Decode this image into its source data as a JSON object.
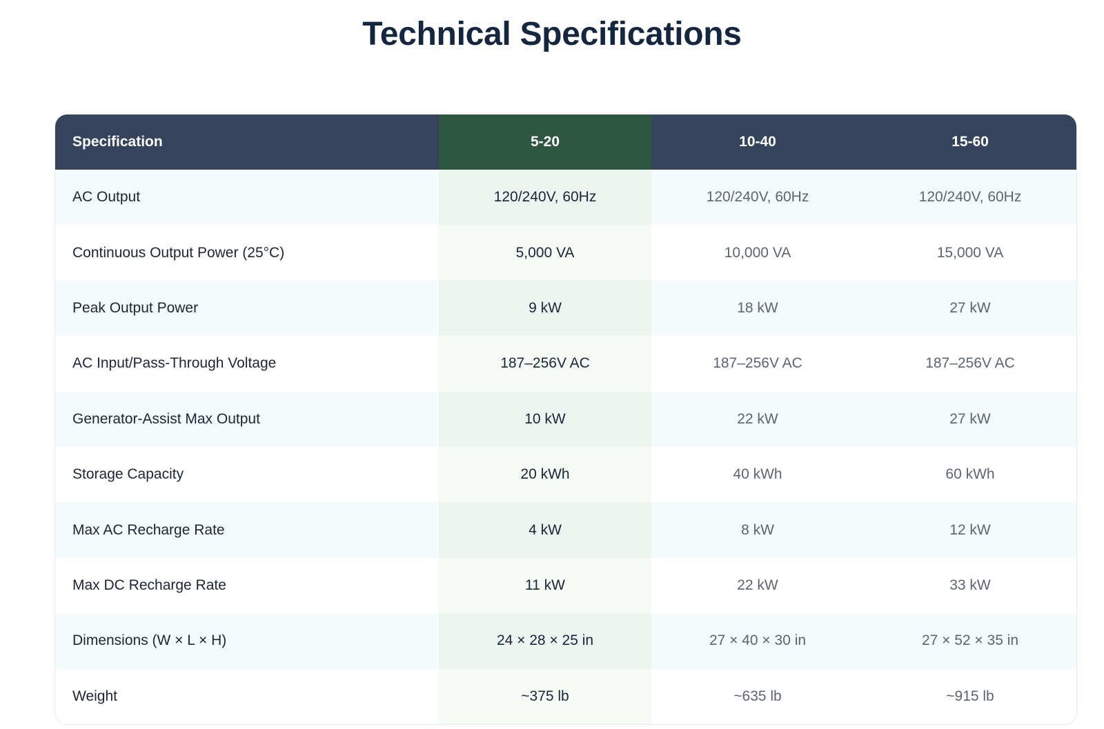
{
  "page_title": "Technical Specifications",
  "table": {
    "headers": [
      "Specification",
      "5-20",
      "10-40",
      "15-60"
    ],
    "rows": [
      [
        "AC Output",
        "120/240V, 60Hz",
        "120/240V, 60Hz",
        "120/240V, 60Hz"
      ],
      [
        "Continuous Output Power (25°C)",
        "5,000 VA",
        "10,000 VA",
        "15,000 VA"
      ],
      [
        "Peak Output Power",
        "9 kW",
        "18 kW",
        "27 kW"
      ],
      [
        "AC Input/Pass-Through Voltage",
        "187–256V AC",
        "187–256V AC",
        "187–256V AC"
      ],
      [
        "Generator-Assist Max Output",
        "10 kW",
        "22 kW",
        "27 kW"
      ],
      [
        "Storage Capacity",
        "20 kWh",
        "40 kWh",
        "60 kWh"
      ],
      [
        "Max AC Recharge Rate",
        "4 kW",
        "8 kW",
        "12 kW"
      ],
      [
        "Max DC Recharge Rate",
        "11 kW",
        "22 kW",
        "33 kW"
      ],
      [
        "Dimensions (W × L × H)",
        "24 × 28 × 25 in",
        "27 × 40 × 30 in",
        "27 × 52 × 35 in"
      ],
      [
        "Weight",
        "~375 lb",
        "~635 lb",
        "~915 lb"
      ]
    ]
  },
  "colors": {
    "header_bg": "#34445c",
    "highlight_header_bg": "#2e5641",
    "title_color": "#142640"
  }
}
